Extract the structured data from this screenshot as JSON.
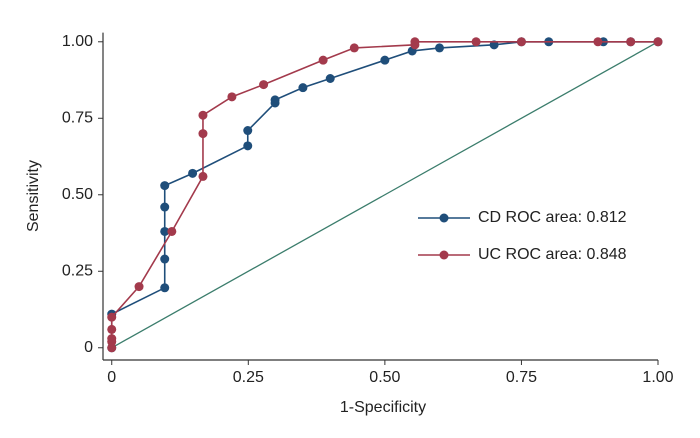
{
  "chart_data": {
    "type": "line",
    "x_label": "1-Specificity",
    "y_label": "Sensitivity",
    "xlim": [
      -0.016,
      1.0
    ],
    "ylim": [
      -0.04,
      1.03
    ],
    "xticks": [
      0,
      0.25,
      {
        "value": 0.5,
        "label": "0.50"
      },
      0.75,
      {
        "value": 1,
        "label": "1.00"
      }
    ],
    "yticks": [
      0,
      0.25,
      {
        "value": 0.5,
        "label": "0.50"
      },
      0.75,
      {
        "value": 1,
        "label": "1.00"
      }
    ],
    "legend": "right",
    "series": [
      {
        "name": "CD ROC area: 0.812",
        "color": "#1f4e7a",
        "x": [
          0,
          0,
          0.097,
          0.097,
          0.097,
          0.097,
          0.097,
          0.148,
          0.249,
          0.249,
          0.299,
          0.299,
          0.35,
          0.4,
          0.5,
          0.55,
          0.6,
          0.7,
          0.75,
          0.8,
          0.9,
          0.95,
          1
        ],
        "values": [
          0,
          0.11,
          0.196,
          0.29,
          0.38,
          0.46,
          0.53,
          0.57,
          0.66,
          0.71,
          0.8,
          0.81,
          0.85,
          0.88,
          0.94,
          0.97,
          0.98,
          0.99,
          1,
          1,
          1,
          1,
          1
        ]
      },
      {
        "name": "UC ROC area: 0.848",
        "color": "#a33a4c",
        "x": [
          0,
          0,
          0,
          0,
          0,
          0.05,
          0.11,
          0.167,
          0.167,
          0.167,
          0.22,
          0.278,
          0.387,
          0.444,
          0.555,
          0.555,
          0.667,
          0.75,
          0.89,
          0.95,
          1
        ],
        "values": [
          0,
          0.02,
          0.03,
          0.06,
          0.1,
          0.2,
          0.38,
          0.56,
          0.7,
          0.76,
          0.82,
          0.86,
          0.94,
          0.98,
          0.99,
          1,
          1,
          1,
          1,
          1,
          1
        ]
      }
    ],
    "diagonal": {
      "color": "#3b7d6c",
      "x": [
        0,
        1
      ],
      "values": [
        0,
        1
      ]
    }
  }
}
